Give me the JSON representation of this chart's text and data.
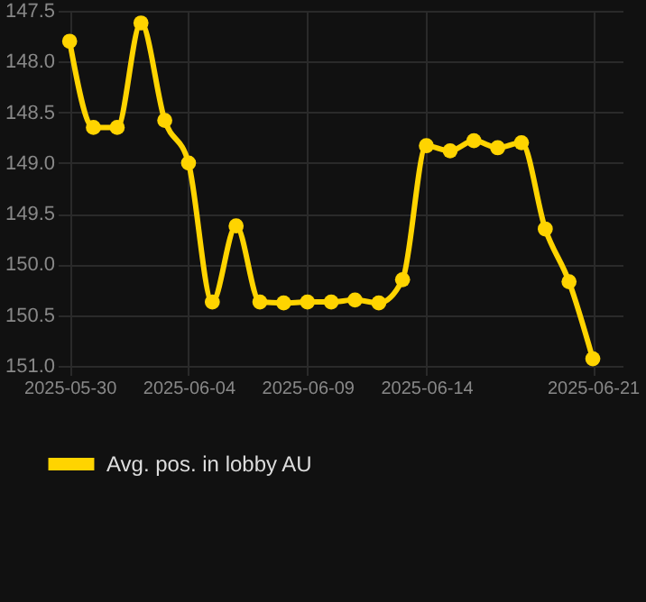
{
  "chart_data": {
    "type": "line",
    "x": [
      "2025-05-30",
      "2025-05-31",
      "2025-06-01",
      "2025-06-02",
      "2025-06-03",
      "2025-06-04",
      "2025-06-05",
      "2025-06-06",
      "2025-06-07",
      "2025-06-08",
      "2025-06-09",
      "2025-06-10",
      "2025-06-11",
      "2025-06-12",
      "2025-06-13",
      "2025-06-14",
      "2025-06-15",
      "2025-06-16",
      "2025-06-17",
      "2025-06-18",
      "2025-06-19",
      "2025-06-20",
      "2025-06-21"
    ],
    "series": [
      {
        "name": "Avg. pos. in lobby AU",
        "color": "#ffd400",
        "values": [
          147.8,
          148.65,
          148.65,
          147.62,
          148.58,
          149.0,
          150.37,
          149.62,
          150.37,
          150.38,
          150.37,
          150.37,
          150.35,
          150.38,
          150.15,
          148.83,
          148.88,
          148.78,
          148.85,
          148.8,
          149.65,
          150.17,
          150.93
        ]
      }
    ],
    "xlim": [
      "2025-05-29T12:00",
      "2025-06-22T06:00"
    ],
    "xticks": [
      "2025-05-30",
      "2025-06-04",
      "2025-06-09",
      "2025-06-14",
      "2025-06-21"
    ],
    "ylim": [
      151.0,
      147.5
    ],
    "yticks": [
      {
        "value": 147.5,
        "label": "147.5"
      },
      {
        "value": 148,
        "label": "148.0"
      },
      {
        "value": 148.5,
        "label": "148.5"
      },
      {
        "value": 149,
        "label": "149.0"
      },
      {
        "value": 149.5,
        "label": "149.5"
      },
      {
        "value": 150,
        "label": "150.0"
      },
      {
        "value": 150.5,
        "label": "150.5"
      },
      {
        "value": 151,
        "label": "151.0"
      }
    ],
    "grid": true,
    "legend": "bottom",
    "marker": "circle",
    "line_style": "solid"
  }
}
